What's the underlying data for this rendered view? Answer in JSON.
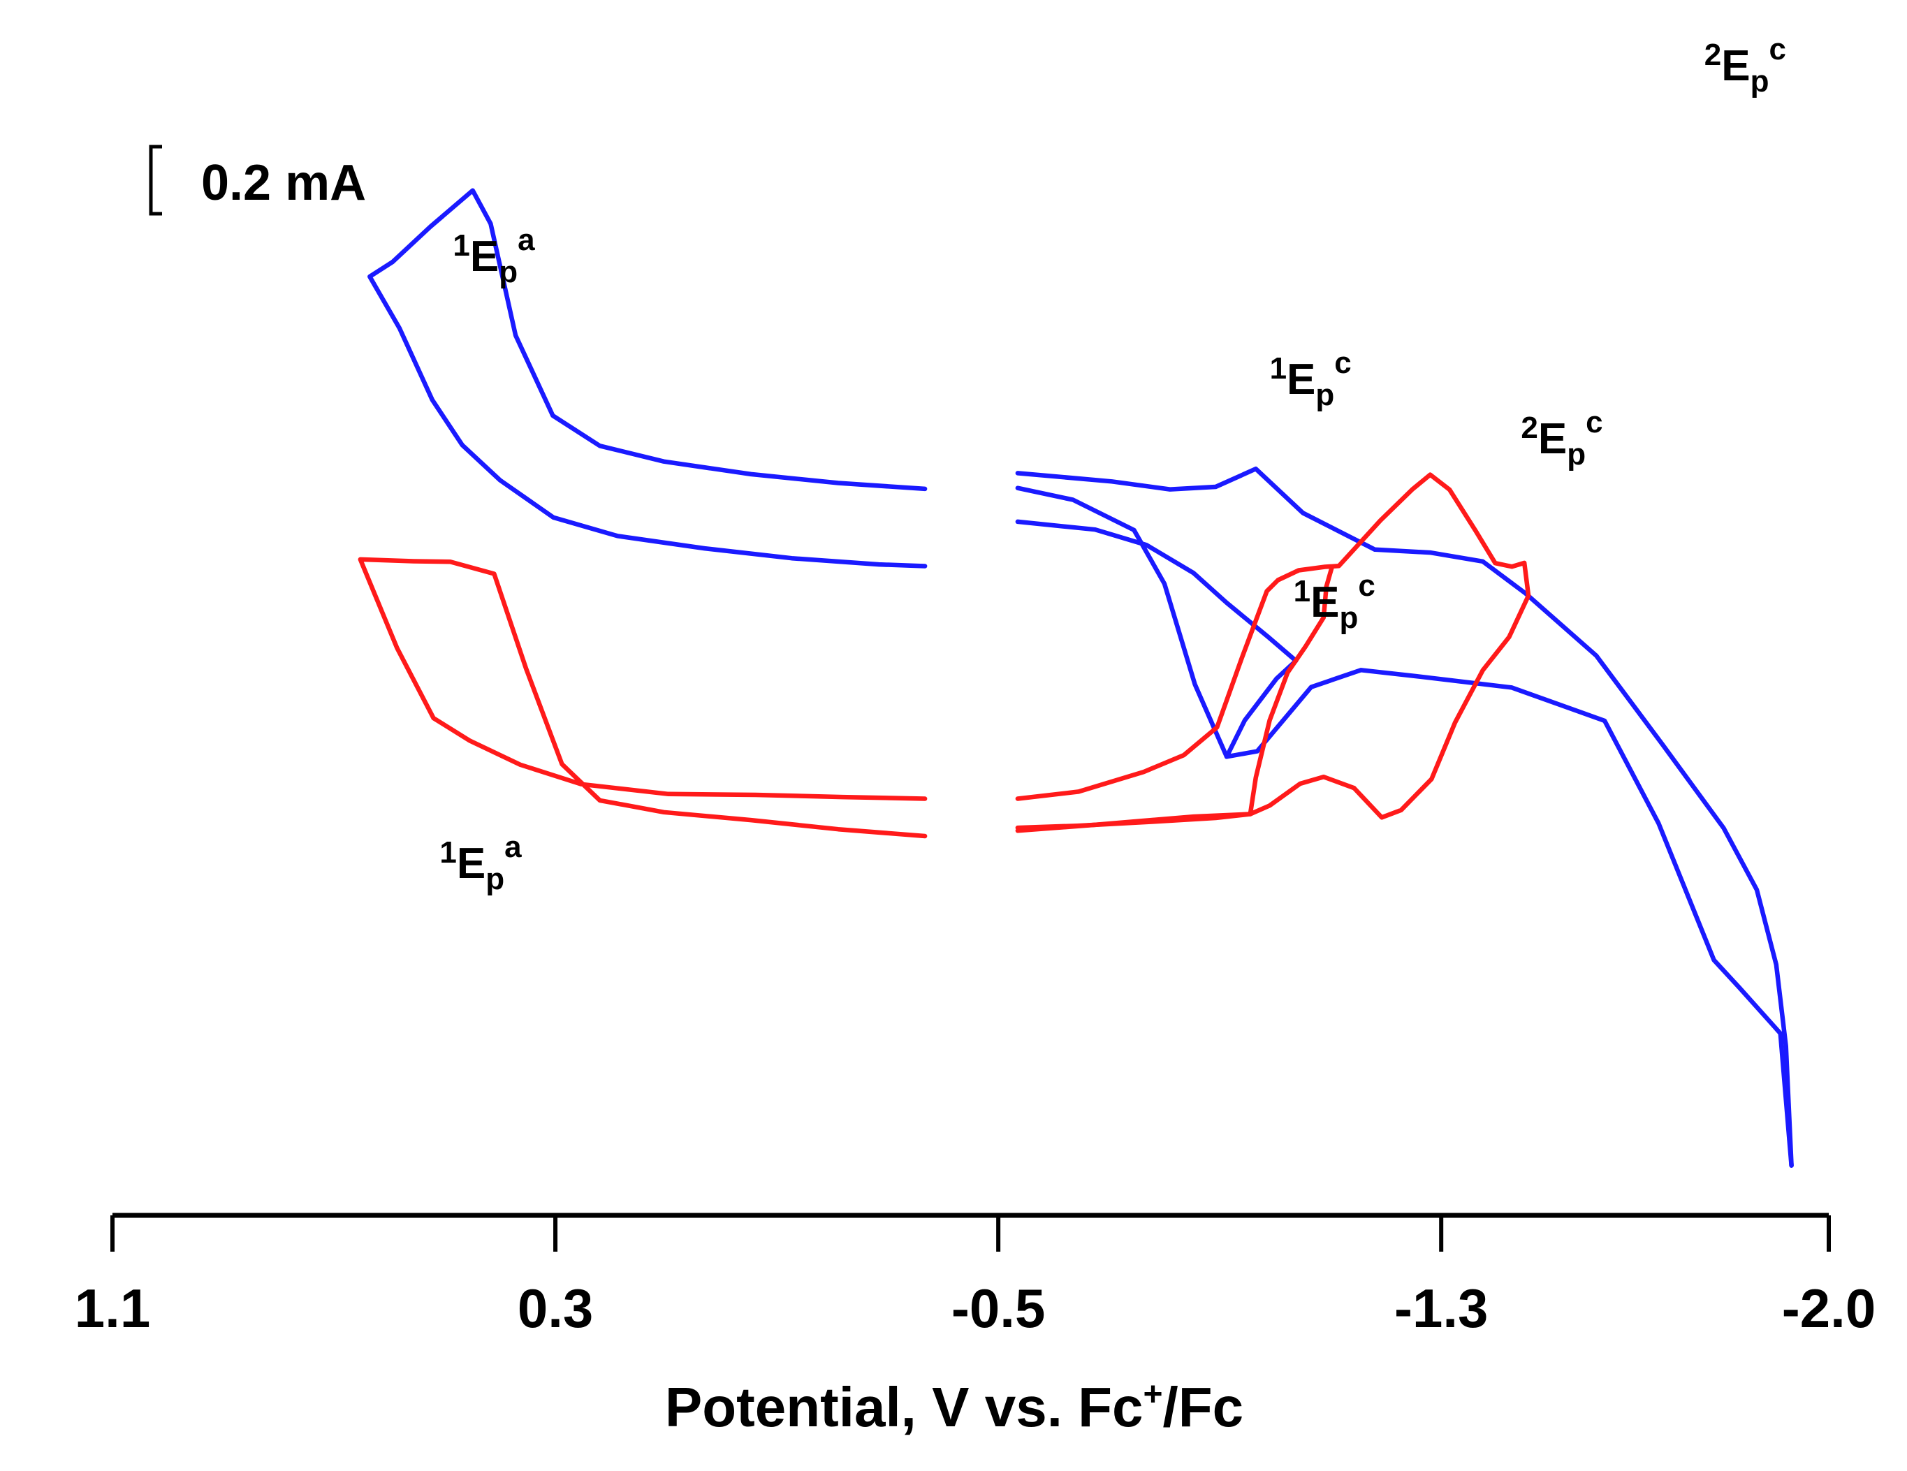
{
  "chart_data": {
    "type": "line",
    "title": "",
    "xlabel": "Potential, V vs. Fc",
    "xlabel_sup": "+",
    "xlabel_tail": "/Fc",
    "ylabel": "",
    "xlim": [
      1.1,
      -2.0
    ],
    "x_direction": "decreasing to the right",
    "ticks": [
      1.1,
      0.3,
      -0.5,
      -1.3,
      -2.0
    ],
    "tick_labels": [
      "1.1",
      "0.3",
      "-0.5",
      "-1.3",
      "-2.0"
    ],
    "scale_bar": {
      "label": "0.2 mA",
      "value_mA": 0.2
    },
    "series": [
      {
        "name": "blue voltammogram",
        "color": "#1a1aff",
        "segments": [
          {
            "part": "forward sweep, positive region",
            "points": [
              [
                -0.3675,
                0.6047
              ],
              [
                -0.2109,
                0.6096
              ],
              [
                -0.0534,
                0.6169
              ],
              [
                0.1041,
                0.6275
              ],
              [
                0.2197,
                0.6405
              ],
              [
                0.3046,
                0.6657
              ],
              [
                0.3719,
                0.7325
              ],
              [
                0.4169,
                0.8254
              ],
              [
                0.4493,
                0.8531
              ],
              [
                0.5256,
                0.823
              ],
              [
                0.5941,
                0.7936
              ],
              [
                0.6353,
                0.7814
              ],
              [
                0.5813,
                0.7382
              ],
              [
                0.5223,
                0.6787
              ],
              [
                0.4683,
                0.6412
              ],
              [
                0.3999,
                0.6119
              ],
              [
                0.3033,
                0.5809
              ],
              [
                0.1881,
                0.5655
              ],
              [
                0.0306,
                0.5552
              ],
              [
                -0.1269,
                0.547
              ],
              [
                -0.2844,
                0.5418
              ],
              [
                -0.3675,
                0.5404
              ]
            ]
          },
          {
            "part": "forward sweep, negative region",
            "points": [
              [
                -0.5351,
                0.6178
              ],
              [
                -0.7051,
                0.6109
              ],
              [
                -0.8101,
                0.6043
              ],
              [
                -0.8926,
                0.6064
              ],
              [
                -0.9651,
                0.6214
              ],
              [
                -1.0501,
                0.5847
              ],
              [
                -1.1801,
                0.5542
              ],
              [
                -1.2801,
                0.5517
              ],
              [
                -1.3751,
                0.5443
              ],
              [
                -1.4526,
                0.5176
              ],
              [
                -1.5801,
                0.4659
              ],
              [
                -1.7001,
                0.3917
              ],
              [
                -1.8101,
                0.3224
              ],
              [
                -1.8701,
                0.271
              ],
              [
                -1.9051,
                0.2087
              ],
              [
                -1.9226,
                0.1409
              ],
              [
                -1.9326,
                0.0415
              ]
            ]
          },
          {
            "part": "reverse sweep",
            "points": [
              [
                -1.9326,
                0.0415
              ],
              [
                -1.9126,
                0.1515
              ],
              [
                -1.8376,
                0.19
              ],
              [
                -1.7926,
                0.2125
              ],
              [
                -1.6926,
                0.3263
              ],
              [
                -1.5951,
                0.4117
              ],
              [
                -1.4276,
                0.4393
              ],
              [
                -1.2551,
                0.4488
              ],
              [
                -1.1551,
                0.4539
              ],
              [
                -1.0651,
                0.4397
              ],
              [
                -0.9676,
                0.3863
              ],
              [
                -0.9126,
                0.3818
              ],
              [
                -0.8551,
                0.442
              ],
              [
                -0.8001,
                0.5257
              ],
              [
                -0.7451,
                0.5704
              ],
              [
                -0.6351,
                0.5956
              ],
              [
                -0.5351,
                0.6054
              ]
            ]
          },
          {
            "part": "closing sweep",
            "points": [
              [
                -0.9126,
                0.3818
              ],
              [
                -0.9451,
                0.412
              ],
              [
                -1.0026,
                0.4468
              ],
              [
                -1.0376,
                0.4616
              ],
              [
                -0.9876,
                0.4814
              ],
              [
                -0.9126,
                0.5099
              ],
              [
                -0.8526,
                0.5347
              ],
              [
                -0.7676,
                0.558
              ],
              [
                -0.6751,
                0.5708
              ],
              [
                -0.5351,
                0.5774
              ]
            ]
          }
        ]
      },
      {
        "name": "red voltammogram",
        "color": "#ff1a1a",
        "segments": [
          {
            "part": "forward sweep, positive region",
            "points": [
              [
                -0.3675,
                0.3157
              ],
              [
                -0.2109,
                0.3214
              ],
              [
                -0.0534,
                0.329
              ],
              [
                0.1041,
                0.3356
              ],
              [
                0.2197,
                0.3454
              ],
              [
                0.2881,
                0.3756
              ],
              [
                0.3529,
                0.4551
              ],
              [
                0.4106,
                0.534
              ],
              [
                0.4898,
                0.544
              ],
              [
                0.5563,
                0.5445
              ],
              [
                0.6524,
                0.546
              ],
              [
                0.586,
                0.4722
              ],
              [
                0.5201,
                0.4139
              ],
              [
                0.4543,
                0.395
              ],
              [
                0.3634,
                0.3751
              ],
              [
                0.2534,
                0.3589
              ],
              [
                0.0959,
                0.3507
              ],
              [
                -0.0614,
                0.35
              ],
              [
                -0.2189,
                0.3482
              ],
              [
                -0.3675,
                0.3468
              ]
            ]
          },
          {
            "part": "forward sweep, negative region",
            "points": [
              [
                -0.5351,
                0.3468
              ],
              [
                -0.6451,
                0.3527
              ],
              [
                -0.7626,
                0.3691
              ],
              [
                -0.8351,
                0.3831
              ],
              [
                -0.8951,
                0.4063
              ],
              [
                -0.9401,
                0.4642
              ],
              [
                -0.9851,
                0.5196
              ],
              [
                -1.0051,
                0.5288
              ],
              [
                -1.0426,
                0.5369
              ],
              [
                -1.0901,
                0.5398
              ],
              [
                -1.1151,
                0.5405
              ],
              [
                -1.1901,
                0.5784
              ],
              [
                -1.2476,
                0.6042
              ],
              [
                -1.2801,
                0.6165
              ],
              [
                -1.3151,
                0.604
              ],
              [
                -1.3626,
                0.5695
              ],
              [
                -1.3976,
                0.5429
              ],
              [
                -1.4276,
                0.54
              ],
              [
                -1.4501,
                0.5431
              ],
              [
                -1.4576,
                0.5158
              ],
              [
                -1.4226,
                0.4814
              ],
              [
                -1.3751,
                0.4537
              ],
              [
                -1.3251,
                0.4103
              ],
              [
                -1.2826,
                0.3632
              ],
              [
                -1.2276,
                0.3373
              ],
              [
                -1.1926,
                0.3312
              ],
              [
                -1.1426,
                0.3557
              ]
            ]
          },
          {
            "part": "reverse sweep",
            "points": [
              [
                -1.1426,
                0.3557
              ],
              [
                -1.0876,
                0.365
              ],
              [
                -1.0451,
                0.3593
              ],
              [
                -0.9901,
                0.3411
              ],
              [
                -0.9551,
                0.334
              ],
              [
                -0.8526,
                0.3319
              ],
              [
                -0.6726,
                0.325
              ],
              [
                -0.5351,
                0.3202
              ]
            ]
          },
          {
            "part": "closing sweep",
            "points": [
              [
                -1.1026,
                0.5395
              ],
              [
                -1.0926,
                0.5234
              ],
              [
                -1.0876,
                0.4976
              ],
              [
                -1.0551,
                0.4736
              ],
              [
                -1.0226,
                0.4518
              ],
              [
                -0.9901,
                0.4121
              ],
              [
                -0.9651,
                0.3645
              ],
              [
                -0.9551,
                0.334
              ],
              [
                -0.8926,
                0.3308
              ],
              [
                -0.7801,
                0.3277
              ],
              [
                -0.6426,
                0.3243
              ],
              [
                -0.5351,
                0.3226
              ]
            ]
          }
        ]
      }
    ],
    "annotations": [
      {
        "name": "blue-1Epa",
        "prefix": "1",
        "base": "E",
        "sub": "p",
        "sup": "a",
        "x": 0.485,
        "y": 0.786
      },
      {
        "name": "blue-1Epc",
        "prefix": "1",
        "base": "E",
        "sub": "p",
        "sup": "c",
        "x": -0.9901,
        "y": 0.6838
      },
      {
        "name": "blue-2Epc",
        "prefix": "2",
        "base": "E",
        "sub": "p",
        "sup": "c",
        "x": -1.7751,
        "y": 0.9448
      },
      {
        "name": "red-1Epa",
        "prefix": "1",
        "base": "E",
        "sub": "p",
        "sup": "a",
        "x": 0.509,
        "y": 0.2808
      },
      {
        "name": "red-1Epc",
        "prefix": "1",
        "base": "E",
        "sub": "p",
        "sup": "c",
        "x": -1.0331,
        "y": 0.4984
      },
      {
        "name": "red-2Epc",
        "prefix": "2",
        "base": "E",
        "sub": "p",
        "sup": "c",
        "x": -1.4441,
        "y": 0.6342
      }
    ]
  }
}
